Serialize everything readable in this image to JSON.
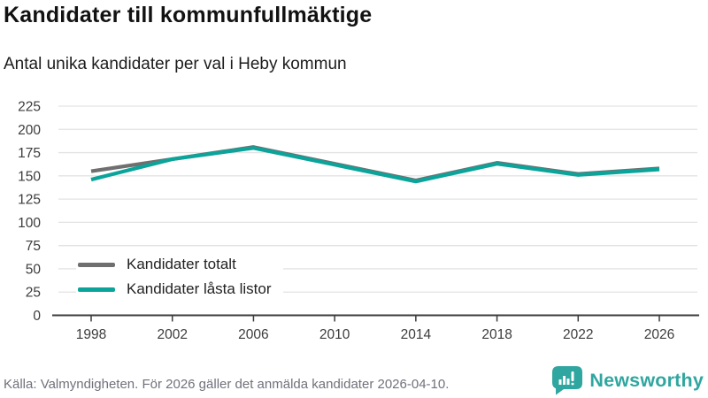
{
  "chart_data": {
    "type": "line",
    "title": "Kandidater till kommunfullmäktige",
    "subtitle": "Antal unika kandidater per val i Heby kommun",
    "categories": [
      "1998",
      "2002",
      "2006",
      "2010",
      "2014",
      "2018",
      "2022",
      "2026"
    ],
    "series": [
      {
        "name": "Kandidater totalt",
        "color": "#6f6f6f",
        "values": [
          155,
          168,
          181,
          163,
          145,
          164,
          152,
          158
        ]
      },
      {
        "name": "Kandidater låsta listor",
        "color": "#0aa49b",
        "values": [
          146,
          168,
          180,
          162,
          144,
          163,
          151,
          157
        ]
      }
    ],
    "xlabel": "",
    "ylabel": "",
    "ylim": [
      0,
      225
    ],
    "yticks": [
      0,
      25,
      50,
      75,
      100,
      125,
      150,
      175,
      200,
      225
    ],
    "grid": true,
    "legend_position": "inside-bottom-left",
    "grid_color": "#e3e3e3",
    "axis_color": "#3b3b3b"
  },
  "footer": {
    "source": "Källa: Valmyndigheten. För 2026 gäller det anmälda kandidater 2026-04-10.",
    "brand": "Newsworthy",
    "brand_color": "#2fa69f"
  }
}
